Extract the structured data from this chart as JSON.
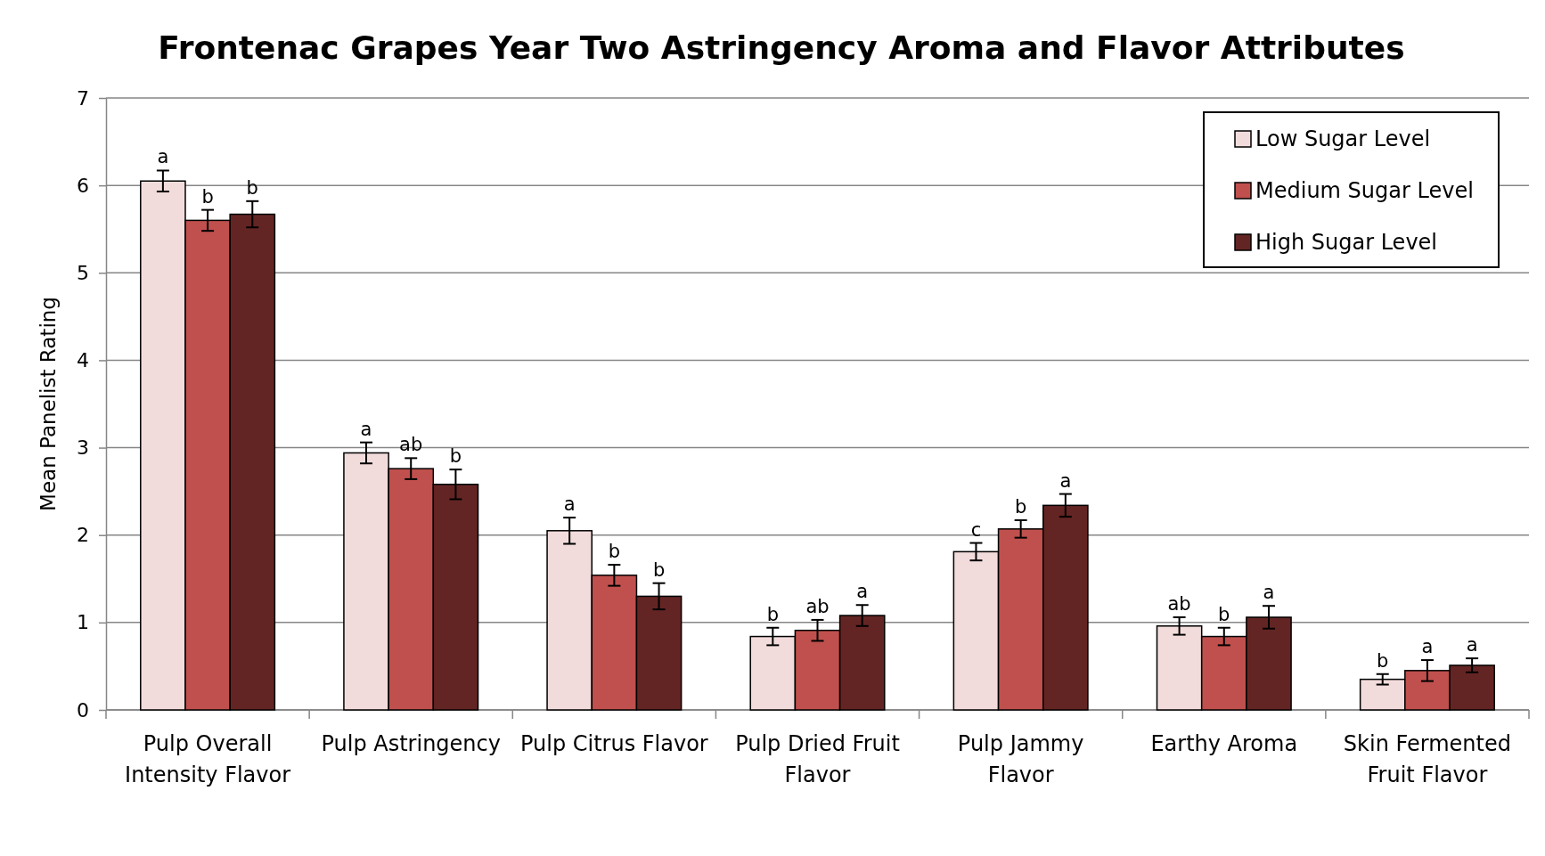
{
  "chart_data": {
    "type": "bar",
    "title": "Frontenac Grapes Year Two Astringency Aroma and Flavor Attributes",
    "ylabel": "Mean Panelist Rating",
    "categories": [
      "Pulp Overall Intensity Flavor",
      "Pulp Astringency",
      "Pulp Citrus Flavor",
      "Pulp Dried Fruit Flavor",
      "Pulp Jammy Flavor",
      "Earthy Aroma",
      "Skin Fermented Fruit Flavor"
    ],
    "series": [
      {
        "name": "Low Sugar Level",
        "color": "#f2dcdb",
        "values": [
          6.05,
          2.94,
          2.05,
          0.84,
          1.81,
          0.96,
          0.35
        ],
        "errors": [
          0.12,
          0.12,
          0.15,
          0.1,
          0.1,
          0.1,
          0.06
        ],
        "value_labels": [
          "a",
          "a",
          "a",
          "b",
          "c",
          "ab",
          "b"
        ]
      },
      {
        "name": "Medium Sugar Level",
        "color": "#c0504d",
        "values": [
          5.6,
          2.76,
          1.54,
          0.91,
          2.07,
          0.84,
          0.45
        ],
        "errors": [
          0.12,
          0.12,
          0.12,
          0.12,
          0.1,
          0.1,
          0.12
        ],
        "value_labels": [
          "b",
          "ab",
          "b",
          "ab",
          "b",
          "b",
          "a"
        ]
      },
      {
        "name": "High Sugar Level",
        "color": "#632523",
        "values": [
          5.67,
          2.58,
          1.3,
          1.08,
          2.34,
          1.06,
          0.51
        ],
        "errors": [
          0.15,
          0.17,
          0.15,
          0.12,
          0.13,
          0.13,
          0.08
        ],
        "value_labels": [
          "b",
          "b",
          "b",
          "a",
          "a",
          "a",
          "a"
        ]
      }
    ],
    "ylim": [
      0,
      7
    ],
    "yticks": [
      0,
      1,
      2,
      3,
      4,
      5,
      6,
      7
    ],
    "grid": "y",
    "legend": "top right"
  }
}
